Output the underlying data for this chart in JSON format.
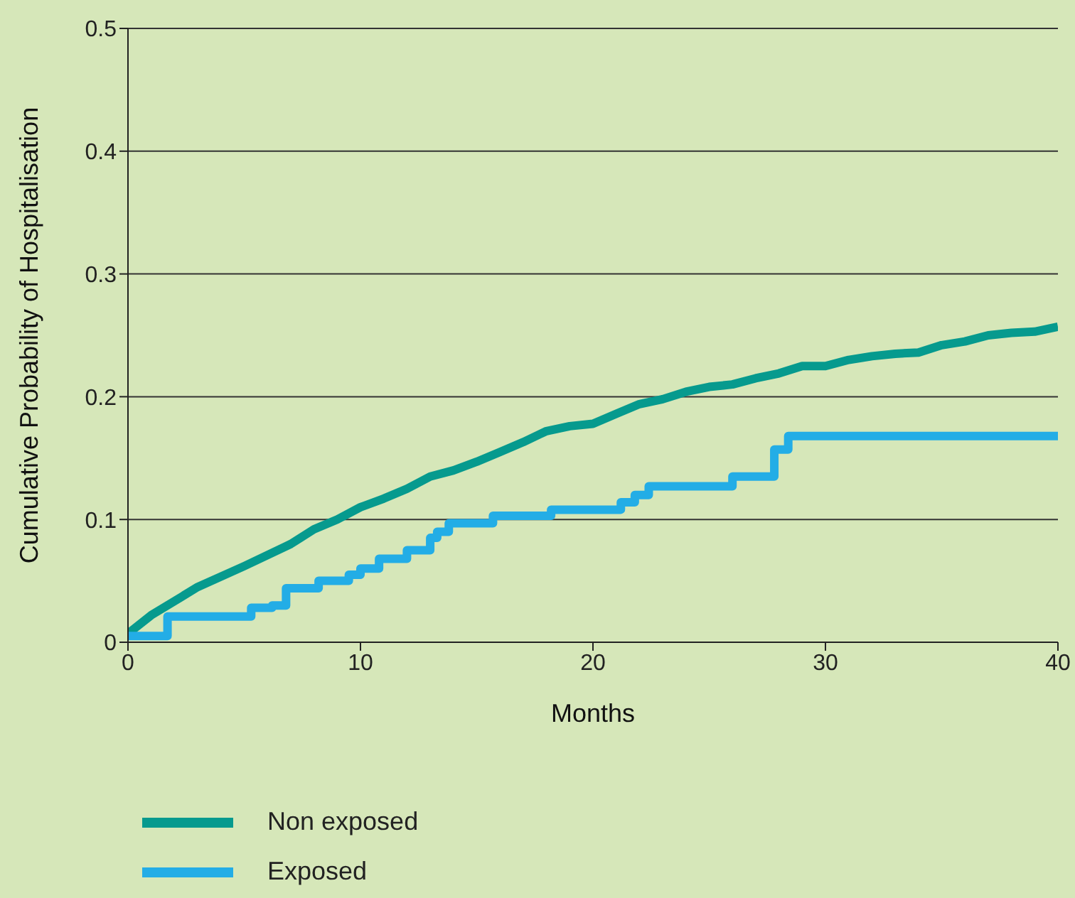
{
  "chart_data": {
    "type": "line",
    "xlabel": "Months",
    "ylabel": "Cumulative Probability of Hospitalisation",
    "xlim": [
      0,
      40
    ],
    "xticks": [
      0,
      10,
      20,
      30,
      40
    ],
    "ylim": [
      0,
      0.5
    ],
    "yticks": [
      0,
      0.1,
      0.2,
      0.3,
      0.4,
      0.5
    ],
    "grid": "y",
    "legend": "bottom left",
    "series": [
      {
        "name": "Non exposed",
        "color": "#069a8e",
        "type": "line",
        "x": [
          0,
          1,
          3,
          5,
          7,
          8,
          9,
          10,
          11,
          12,
          13,
          14,
          15,
          16,
          17,
          18,
          19,
          20,
          21,
          22,
          23,
          24,
          25,
          26,
          27,
          28,
          29,
          30,
          31,
          32,
          33,
          34,
          35,
          36,
          37,
          38,
          39,
          40
        ],
        "values": [
          0.007,
          0.022,
          0.045,
          0.062,
          0.08,
          0.092,
          0.1,
          0.11,
          0.117,
          0.125,
          0.135,
          0.14,
          0.147,
          0.155,
          0.163,
          0.172,
          0.176,
          0.178,
          0.186,
          0.194,
          0.198,
          0.204,
          0.208,
          0.21,
          0.215,
          0.219,
          0.225,
          0.225,
          0.23,
          0.233,
          0.235,
          0.236,
          0.242,
          0.245,
          0.25,
          0.252,
          0.253,
          0.257
        ]
      },
      {
        "name": "Exposed",
        "color": "#23ade6",
        "type": "step",
        "x": [
          0,
          1.7,
          5.3,
          6.2,
          6.8,
          8.2,
          9.5,
          10,
          10.8,
          12,
          13,
          13.3,
          13.8,
          15.7,
          18.2,
          21.2,
          21.8,
          22.4,
          26,
          27.8,
          28.4,
          40
        ],
        "values": [
          0.005,
          0.021,
          0.028,
          0.03,
          0.044,
          0.05,
          0.055,
          0.06,
          0.068,
          0.075,
          0.085,
          0.09,
          0.097,
          0.103,
          0.108,
          0.114,
          0.12,
          0.127,
          0.135,
          0.157,
          0.168,
          0.168
        ]
      }
    ]
  }
}
